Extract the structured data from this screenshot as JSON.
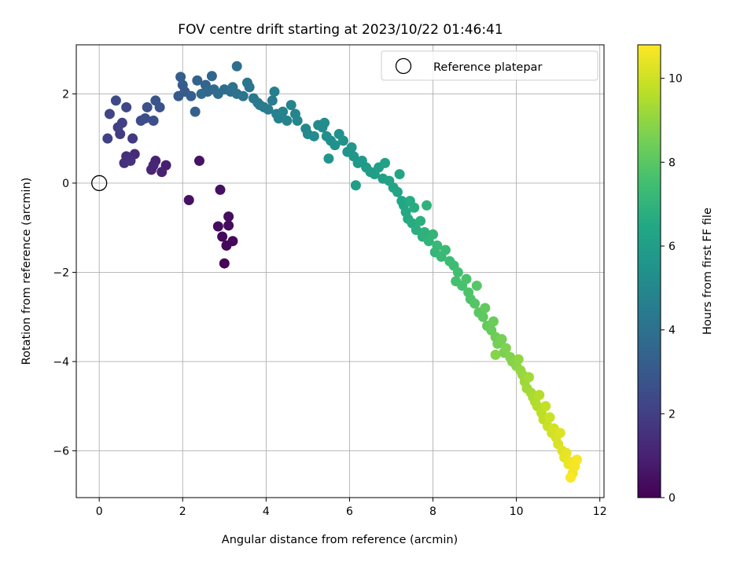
{
  "chart_data": {
    "type": "scatter",
    "title": "FOV centre drift starting at 2023/10/22 01:46:41",
    "xlabel": "Angular distance from reference (arcmin)",
    "ylabel": "Rotation from reference (arcmin)",
    "xlim": [
      -0.55,
      12.1
    ],
    "ylim": [
      -7.05,
      3.1
    ],
    "xticks": [
      0,
      2,
      4,
      6,
      8,
      10,
      12
    ],
    "yticks": [
      -6,
      -4,
      -2,
      0,
      2
    ],
    "xtick_labels": [
      "0",
      "2",
      "4",
      "6",
      "8",
      "10",
      "12"
    ],
    "ytick_labels": [
      "−6",
      "−4",
      "−2",
      "0",
      "2"
    ],
    "grid": true,
    "legend": {
      "placement": "top-right",
      "entries": [
        "Reference platepar"
      ]
    },
    "reference_point": {
      "name": "Reference platepar",
      "x": 0,
      "y": 0,
      "marker": "open-circle"
    },
    "colorbar": {
      "label": "Hours from first FF file",
      "colormap": "viridis",
      "min": 0,
      "max": 10.8,
      "ticks": [
        0,
        2,
        4,
        6,
        8,
        10
      ],
      "tick_labels": [
        "0",
        "2",
        "4",
        "6",
        "8",
        "10"
      ]
    },
    "series": [
      {
        "color_by": "hours",
        "points": [
          [
            3.0,
            -1.8,
            0.1
          ],
          [
            3.2,
            -1.3,
            0.15
          ],
          [
            3.05,
            -1.4,
            0.2
          ],
          [
            2.95,
            -1.2,
            0.25
          ],
          [
            3.1,
            -0.95,
            0.3
          ],
          [
            2.85,
            -0.97,
            0.35
          ],
          [
            3.1,
            -0.75,
            0.4
          ],
          [
            2.9,
            -0.15,
            0.45
          ],
          [
            2.15,
            -0.38,
            0.5
          ],
          [
            2.4,
            0.5,
            0.55
          ],
          [
            1.6,
            0.4,
            0.9
          ],
          [
            1.5,
            0.25,
            1.0
          ],
          [
            1.35,
            0.5,
            1.05
          ],
          [
            1.25,
            0.3,
            1.1
          ],
          [
            1.3,
            0.4,
            1.15
          ],
          [
            0.85,
            0.65,
            1.3
          ],
          [
            0.7,
            0.55,
            1.4
          ],
          [
            0.6,
            0.45,
            1.45
          ],
          [
            0.65,
            0.6,
            1.5
          ],
          [
            0.75,
            0.5,
            1.55
          ],
          [
            0.8,
            1.0,
            1.8
          ],
          [
            0.5,
            1.1,
            1.9
          ],
          [
            0.45,
            1.25,
            2.0
          ],
          [
            0.55,
            1.35,
            2.05
          ],
          [
            0.2,
            1.0,
            2.1
          ],
          [
            0.25,
            1.55,
            2.2
          ],
          [
            0.65,
            1.7,
            2.3
          ],
          [
            0.4,
            1.85,
            2.4
          ],
          [
            1.0,
            1.4,
            2.5
          ],
          [
            1.1,
            1.45,
            2.55
          ],
          [
            1.3,
            1.4,
            2.6
          ],
          [
            1.15,
            1.7,
            2.65
          ],
          [
            1.45,
            1.7,
            2.7
          ],
          [
            1.35,
            1.85,
            2.8
          ],
          [
            1.9,
            1.95,
            3.0
          ],
          [
            2.05,
            2.05,
            3.1
          ],
          [
            2.0,
            2.2,
            3.15
          ],
          [
            1.95,
            2.38,
            3.2
          ],
          [
            2.2,
            1.95,
            3.25
          ],
          [
            2.3,
            1.6,
            3.3
          ],
          [
            2.35,
            2.3,
            3.4
          ],
          [
            2.55,
            2.2,
            3.5
          ],
          [
            2.7,
            2.4,
            3.6
          ],
          [
            2.6,
            2.05,
            3.65
          ],
          [
            2.45,
            2.0,
            3.7
          ],
          [
            2.75,
            2.1,
            3.75
          ],
          [
            2.85,
            2.0,
            3.8
          ],
          [
            3.0,
            2.1,
            3.85
          ],
          [
            3.15,
            2.05,
            3.9
          ],
          [
            3.3,
            2.62,
            3.95
          ],
          [
            3.2,
            2.15,
            4.0
          ],
          [
            3.3,
            2.0,
            4.05
          ],
          [
            3.45,
            1.95,
            4.1
          ],
          [
            3.55,
            2.25,
            4.15
          ],
          [
            3.6,
            2.15,
            4.2
          ],
          [
            3.7,
            1.9,
            4.3
          ],
          [
            3.85,
            1.75,
            4.35
          ],
          [
            3.8,
            1.8,
            4.4
          ],
          [
            3.95,
            1.7,
            4.45
          ],
          [
            4.05,
            1.65,
            4.5
          ],
          [
            4.15,
            1.85,
            4.55
          ],
          [
            4.2,
            2.05,
            4.6
          ],
          [
            4.25,
            1.55,
            4.65
          ],
          [
            4.3,
            1.45,
            4.7
          ],
          [
            4.4,
            1.6,
            4.75
          ],
          [
            4.5,
            1.4,
            4.8
          ],
          [
            4.6,
            1.75,
            4.85
          ],
          [
            4.7,
            1.55,
            4.9
          ],
          [
            4.75,
            1.4,
            4.95
          ],
          [
            4.95,
            1.22,
            5.0
          ],
          [
            5.0,
            1.1,
            5.05
          ],
          [
            5.15,
            1.05,
            5.1
          ],
          [
            5.25,
            1.3,
            5.15
          ],
          [
            5.35,
            1.25,
            5.2
          ],
          [
            5.4,
            1.35,
            5.25
          ],
          [
            5.45,
            1.05,
            5.3
          ],
          [
            5.55,
            0.95,
            5.35
          ],
          [
            5.65,
            0.85,
            5.4
          ],
          [
            5.75,
            1.1,
            5.45
          ],
          [
            5.85,
            0.95,
            5.5
          ],
          [
            5.95,
            0.7,
            5.55
          ],
          [
            5.5,
            0.55,
            5.6
          ],
          [
            6.05,
            0.8,
            5.65
          ],
          [
            6.1,
            0.6,
            5.7
          ],
          [
            6.2,
            0.45,
            5.75
          ],
          [
            6.3,
            0.5,
            5.8
          ],
          [
            6.4,
            0.35,
            5.85
          ],
          [
            6.5,
            0.25,
            5.9
          ],
          [
            6.15,
            -0.05,
            5.95
          ],
          [
            6.6,
            0.2,
            6.0
          ],
          [
            6.7,
            0.35,
            6.05
          ],
          [
            6.8,
            0.1,
            6.1
          ],
          [
            6.85,
            0.45,
            6.15
          ],
          [
            6.95,
            0.05,
            6.2
          ],
          [
            7.05,
            -0.1,
            6.25
          ],
          [
            7.15,
            -0.2,
            6.3
          ],
          [
            7.2,
            0.2,
            6.35
          ],
          [
            7.25,
            -0.4,
            6.4
          ],
          [
            7.3,
            -0.5,
            6.45
          ],
          [
            7.35,
            -0.65,
            6.5
          ],
          [
            7.4,
            -0.8,
            6.55
          ],
          [
            7.45,
            -0.4,
            6.6
          ],
          [
            7.5,
            -0.9,
            6.65
          ],
          [
            7.55,
            -0.55,
            6.7
          ],
          [
            7.6,
            -1.05,
            6.75
          ],
          [
            7.7,
            -0.85,
            6.8
          ],
          [
            7.75,
            -1.2,
            6.85
          ],
          [
            7.8,
            -1.1,
            6.9
          ],
          [
            7.85,
            -0.5,
            6.95
          ],
          [
            7.9,
            -1.3,
            7.0
          ],
          [
            8.0,
            -1.15,
            7.05
          ],
          [
            8.05,
            -1.55,
            7.1
          ],
          [
            8.1,
            -1.4,
            7.2
          ],
          [
            8.2,
            -1.65,
            7.25
          ],
          [
            8.3,
            -1.5,
            7.3
          ],
          [
            8.4,
            -1.75,
            7.35
          ],
          [
            8.5,
            -1.85,
            7.4
          ],
          [
            8.6,
            -2.0,
            7.5
          ],
          [
            8.55,
            -2.2,
            7.55
          ],
          [
            8.7,
            -2.3,
            7.6
          ],
          [
            8.8,
            -2.15,
            7.7
          ],
          [
            8.85,
            -2.45,
            7.75
          ],
          [
            8.9,
            -2.6,
            7.8
          ],
          [
            9.0,
            -2.7,
            7.9
          ],
          [
            9.05,
            -2.3,
            7.95
          ],
          [
            9.1,
            -2.9,
            8.0
          ],
          [
            9.2,
            -3.0,
            8.1
          ],
          [
            9.25,
            -2.8,
            8.15
          ],
          [
            9.3,
            -3.2,
            8.2
          ],
          [
            9.4,
            -3.3,
            8.3
          ],
          [
            9.45,
            -3.1,
            8.35
          ],
          [
            9.5,
            -3.45,
            8.4
          ],
          [
            9.55,
            -3.6,
            8.5
          ],
          [
            9.65,
            -3.5,
            8.55
          ],
          [
            9.7,
            -3.8,
            8.6
          ],
          [
            9.75,
            -3.7,
            8.7
          ],
          [
            9.85,
            -3.9,
            8.75
          ],
          [
            9.9,
            -4.0,
            8.8
          ],
          [
            9.5,
            -3.85,
            8.85
          ],
          [
            10.0,
            -4.1,
            8.9
          ],
          [
            10.05,
            -3.95,
            9.0
          ],
          [
            10.1,
            -4.2,
            9.05
          ],
          [
            10.15,
            -4.3,
            9.1
          ],
          [
            10.2,
            -4.45,
            9.2
          ],
          [
            10.25,
            -4.6,
            9.25
          ],
          [
            10.3,
            -4.35,
            9.3
          ],
          [
            10.35,
            -4.7,
            9.35
          ],
          [
            10.4,
            -4.8,
            9.4
          ],
          [
            10.45,
            -4.9,
            9.5
          ],
          [
            10.5,
            -5.0,
            9.55
          ],
          [
            10.55,
            -4.75,
            9.6
          ],
          [
            10.6,
            -5.15,
            9.7
          ],
          [
            10.65,
            -5.3,
            9.75
          ],
          [
            10.7,
            -5.0,
            9.8
          ],
          [
            10.75,
            -5.45,
            9.9
          ],
          [
            10.8,
            -5.25,
            9.95
          ],
          [
            10.85,
            -5.6,
            10.0
          ],
          [
            10.9,
            -5.5,
            10.1
          ],
          [
            10.95,
            -5.7,
            10.15
          ],
          [
            11.0,
            -5.85,
            10.2
          ],
          [
            11.05,
            -5.6,
            10.25
          ],
          [
            11.1,
            -6.0,
            10.3
          ],
          [
            11.15,
            -6.15,
            10.4
          ],
          [
            11.2,
            -6.05,
            10.45
          ],
          [
            11.25,
            -6.3,
            10.5
          ],
          [
            11.3,
            -6.25,
            10.55
          ],
          [
            11.35,
            -6.5,
            10.6
          ],
          [
            11.4,
            -6.35,
            10.65
          ],
          [
            11.45,
            -6.2,
            10.7
          ],
          [
            11.3,
            -6.6,
            10.75
          ]
        ]
      }
    ]
  }
}
